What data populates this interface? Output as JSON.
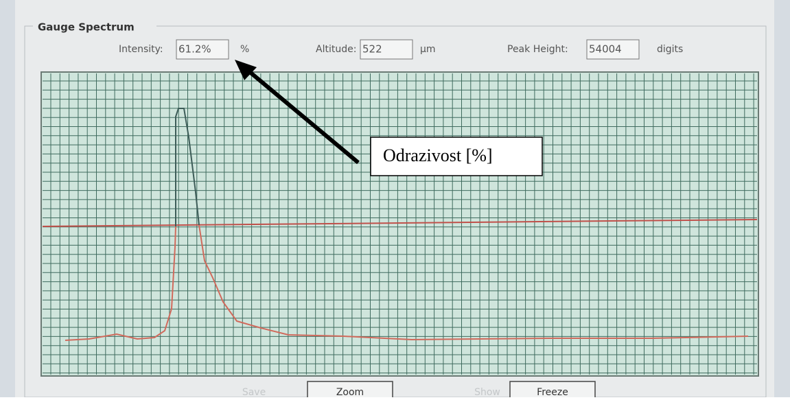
{
  "panel": {
    "title": "Gauge Spectrum",
    "fields": [
      {
        "label": "Intensity:",
        "value": "61.2%",
        "unit": "%"
      },
      {
        "label": "Altitude:",
        "value": 522,
        "unit": "µm"
      },
      {
        "label": "Peak Height:",
        "value": 54004,
        "unit": "digits"
      }
    ]
  },
  "annotation": "Odrazivost [%]",
  "buttons": [
    "Save",
    "Zoom",
    "Show",
    "Freeze"
  ]
}
